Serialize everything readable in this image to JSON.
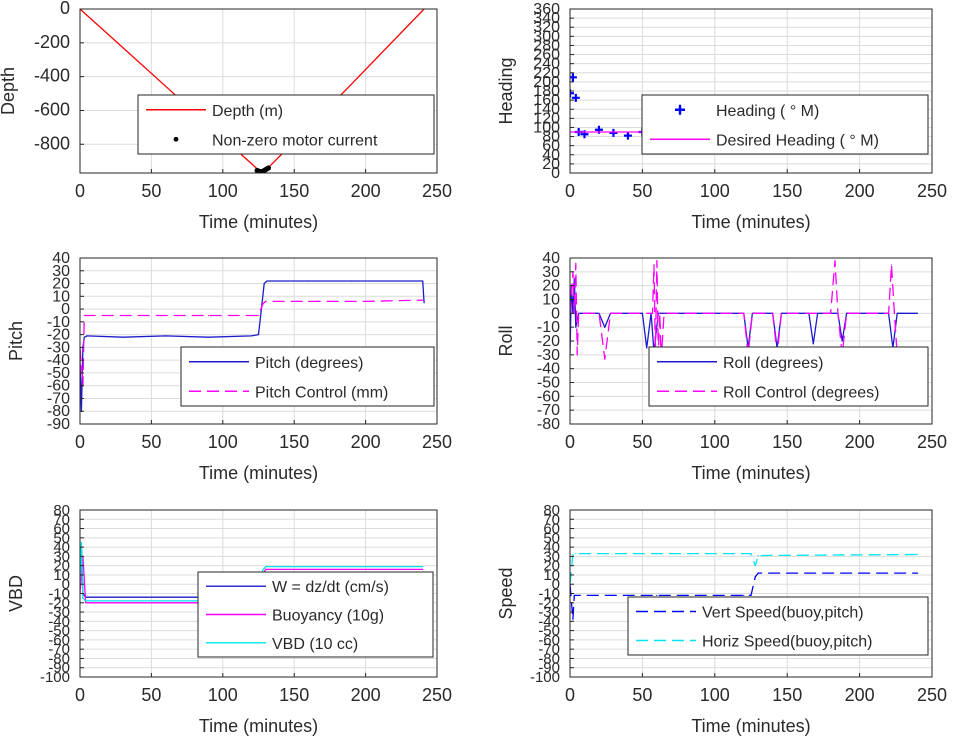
{
  "colors": {
    "red": "#ff0000",
    "blue": "#0000ff",
    "navy": "#1c1ccc",
    "magenta": "#ff00ff",
    "cyan": "#00e5ee",
    "black": "#000000",
    "grid": "#dcdcdc"
  },
  "chart_data": [
    {
      "id": "depth",
      "type": "line",
      "ylabel": "Depth",
      "xlabel": "Time (minutes)",
      "xlim": [
        0,
        250
      ],
      "ylim": [
        -970,
        0
      ],
      "xticks": [
        0,
        50,
        100,
        150,
        200,
        250
      ],
      "yticks": [
        0,
        -200,
        -400,
        -600,
        -800
      ],
      "legend": "center-right",
      "series": [
        {
          "name": "Depth (m)",
          "style": "line",
          "color": "red",
          "x": [
            0,
            63,
            126,
            131,
            186,
            241
          ],
          "y": [
            0,
            -480,
            -960,
            -945,
            -480,
            0
          ]
        },
        {
          "name": "Non-zero motor current",
          "style": "dots",
          "color": "black",
          "x": [
            124,
            125,
            126,
            127,
            128,
            129,
            130,
            131,
            132
          ],
          "y": [
            -955,
            -958,
            -962,
            -962,
            -960,
            -955,
            -950,
            -945,
            -940
          ]
        }
      ]
    },
    {
      "id": "heading",
      "type": "scatter",
      "ylabel": "Heading",
      "xlabel": "Time (minutes)",
      "xlim": [
        0,
        250
      ],
      "ylim": [
        0,
        360
      ],
      "xticks": [
        0,
        50,
        100,
        150,
        200,
        250
      ],
      "yticks": [
        0,
        20,
        40,
        60,
        80,
        100,
        120,
        140,
        160,
        180,
        200,
        220,
        240,
        260,
        280,
        300,
        320,
        340,
        360
      ],
      "legend": "center-right",
      "series": [
        {
          "name": "Heading ( ° M)",
          "style": "plus",
          "color": "blue",
          "x": [
            0,
            2,
            4,
            6,
            10,
            20,
            30,
            40,
            50,
            60,
            70,
            80,
            90,
            100,
            110,
            120,
            130,
            140,
            150,
            160,
            170,
            180,
            190,
            200,
            210,
            220,
            230,
            240
          ],
          "y": [
            175,
            210,
            165,
            90,
            85,
            95,
            88,
            82,
            90,
            80,
            95,
            85,
            90,
            78,
            88,
            82,
            95,
            85,
            90,
            80,
            92,
            85,
            88,
            80,
            90,
            85,
            95,
            90
          ]
        },
        {
          "name": "Desired Heading ( ° M)",
          "style": "line",
          "color": "magenta",
          "x": [
            0,
            5,
            50,
            100,
            150,
            200,
            240
          ],
          "y": [
            90,
            90,
            90,
            88,
            90,
            88,
            90
          ]
        }
      ]
    },
    {
      "id": "pitch",
      "type": "line",
      "ylabel": "Pitch",
      "xlabel": "Time (minutes)",
      "xlim": [
        0,
        250
      ],
      "ylim": [
        -90,
        40
      ],
      "xticks": [
        0,
        50,
        100,
        150,
        200,
        250
      ],
      "yticks": [
        40,
        30,
        20,
        10,
        0,
        -10,
        -20,
        -30,
        -40,
        -50,
        -60,
        -70,
        -80,
        -90
      ],
      "legend": "center-right",
      "series": [
        {
          "name": "Pitch (degrees)",
          "style": "line",
          "color": "navy",
          "x": [
            0,
            1,
            2,
            3,
            5,
            30,
            60,
            90,
            120,
            125,
            127,
            129,
            131,
            160,
            190,
            220,
            240,
            241
          ],
          "y": [
            -40,
            -80,
            -30,
            -22,
            -21,
            -22,
            -21,
            -22,
            -21,
            -20,
            0,
            20,
            22,
            22,
            22,
            22,
            22,
            5
          ]
        },
        {
          "name": "Pitch Control (mm)",
          "style": "dashed",
          "color": "magenta",
          "x": [
            0,
            2,
            3,
            30,
            60,
            90,
            125,
            128,
            130,
            160,
            200,
            240
          ],
          "y": [
            -30,
            -60,
            -5,
            -5,
            -5,
            -5,
            -5,
            4,
            6,
            6,
            6,
            7
          ]
        }
      ]
    },
    {
      "id": "roll",
      "type": "line",
      "ylabel": "Roll",
      "xlabel": "Time (minutes)",
      "xlim": [
        0,
        250
      ],
      "ylim": [
        -80,
        40
      ],
      "xticks": [
        0,
        50,
        100,
        150,
        200,
        250
      ],
      "yticks": [
        40,
        30,
        20,
        10,
        0,
        -10,
        -20,
        -30,
        -40,
        -50,
        -60,
        -70,
        -80
      ],
      "legend": "center-right",
      "series": [
        {
          "name": "Roll (degrees)",
          "style": "line",
          "color": "navy",
          "x": [
            0,
            1,
            2,
            3,
            4,
            6,
            20,
            24,
            28,
            50,
            53,
            56,
            58,
            61,
            64,
            100,
            120,
            123,
            126,
            140,
            143,
            146,
            165,
            168,
            171,
            185,
            188,
            191,
            220,
            223,
            226,
            240
          ],
          "y": [
            -30,
            20,
            0,
            25,
            -10,
            0,
            0,
            -10,
            0,
            0,
            -25,
            0,
            -28,
            0,
            0,
            0,
            0,
            -25,
            0,
            0,
            -25,
            0,
            0,
            -22,
            0,
            0,
            -20,
            0,
            0,
            -25,
            0,
            0
          ]
        },
        {
          "name": "Roll Control (degrees)",
          "style": "dashed",
          "color": "magenta",
          "x": [
            0,
            2,
            3,
            4,
            5,
            6,
            20,
            24,
            28,
            57,
            58,
            59,
            60,
            61,
            62,
            63,
            65,
            100,
            120,
            123,
            126,
            140,
            143,
            146,
            180,
            183,
            185,
            188,
            191,
            220,
            222,
            224,
            226,
            240
          ],
          "y": [
            0,
            30,
            0,
            36,
            -30,
            0,
            0,
            -33,
            0,
            0,
            35,
            -30,
            38,
            -30,
            0,
            -33,
            0,
            0,
            0,
            -30,
            0,
            0,
            -30,
            0,
            0,
            38,
            0,
            -30,
            0,
            0,
            35,
            0,
            -30,
            -30
          ]
        }
      ]
    },
    {
      "id": "vbd",
      "type": "line",
      "ylabel": "VBD",
      "xlabel": "Time (minutes)",
      "xlim": [
        0,
        250
      ],
      "ylim": [
        -100,
        80
      ],
      "xticks": [
        0,
        50,
        100,
        150,
        200,
        250
      ],
      "yticks": [
        80,
        70,
        60,
        50,
        40,
        30,
        20,
        10,
        0,
        -10,
        -20,
        -30,
        -40,
        -50,
        -60,
        -70,
        -80,
        -90,
        -100
      ],
      "ytick_labels": [
        "80",
        "70",
        "60",
        "50",
        "40",
        "30",
        "20",
        "10",
        "0",
        "-10",
        "-20",
        "-30",
        "-40",
        "-50",
        "-60",
        "-70",
        "-80",
        "-90",
        "-100"
      ],
      "legend": "center-right",
      "series": [
        {
          "name": "W = dz/dt (cm/s)",
          "style": "line",
          "color": "navy",
          "x": [
            0,
            1,
            2,
            4,
            30,
            60,
            90,
            120,
            126,
            130,
            160,
            200,
            240,
            241
          ],
          "y": [
            0,
            40,
            -10,
            -14,
            -14,
            -14,
            -14,
            -14,
            5,
            12,
            12,
            13,
            13,
            3
          ]
        },
        {
          "name": "Buoyancy (10g)",
          "style": "line",
          "color": "magenta",
          "x": [
            0,
            2,
            4,
            60,
            124,
            128,
            130,
            240
          ],
          "y": [
            -10,
            30,
            -20,
            -20,
            -20,
            10,
            16,
            16
          ]
        },
        {
          "name": "VBD (10 cc)",
          "style": "line",
          "color": "cyan",
          "x": [
            0,
            1,
            2,
            4,
            60,
            124,
            128,
            130,
            240
          ],
          "y": [
            0,
            45,
            -15,
            -18,
            -18,
            -18,
            15,
            19,
            19
          ]
        }
      ]
    },
    {
      "id": "speed",
      "type": "line",
      "ylabel": "Speed",
      "xlabel": "Time (minutes)",
      "xlim": [
        0,
        250
      ],
      "ylim": [
        -100,
        80
      ],
      "xticks": [
        0,
        50,
        100,
        150,
        200,
        250
      ],
      "yticks": [
        80,
        70,
        60,
        50,
        40,
        30,
        20,
        10,
        0,
        -10,
        -20,
        -30,
        -40,
        -50,
        -60,
        -70,
        -80,
        -90,
        -100
      ],
      "ytick_labels": [
        "80",
        "70",
        "60",
        "50",
        "40",
        "30",
        "20",
        "10",
        "0",
        "-10",
        "-20",
        "-30",
        "-40",
        "-50",
        "-60",
        "-70",
        "-80",
        "-90",
        "-100"
      ],
      "legend": "center-right",
      "series": [
        {
          "name": "Vert Speed(buoy,pitch)",
          "style": "dashed",
          "color": "blue",
          "x": [
            0,
            2,
            3,
            4,
            30,
            60,
            90,
            120,
            125,
            128,
            130,
            240
          ],
          "y": [
            0,
            -38,
            -12,
            -12,
            -12,
            -12,
            -12,
            -12,
            -12,
            8,
            12,
            12
          ]
        },
        {
          "name": "Horiz Speed(buoy,pitch)",
          "style": "dashed",
          "color": "cyan",
          "x": [
            0,
            2,
            4,
            60,
            120,
            125,
            128,
            130,
            240
          ],
          "y": [
            0,
            32,
            33,
            33,
            33,
            33,
            20,
            31,
            32
          ]
        }
      ]
    }
  ]
}
